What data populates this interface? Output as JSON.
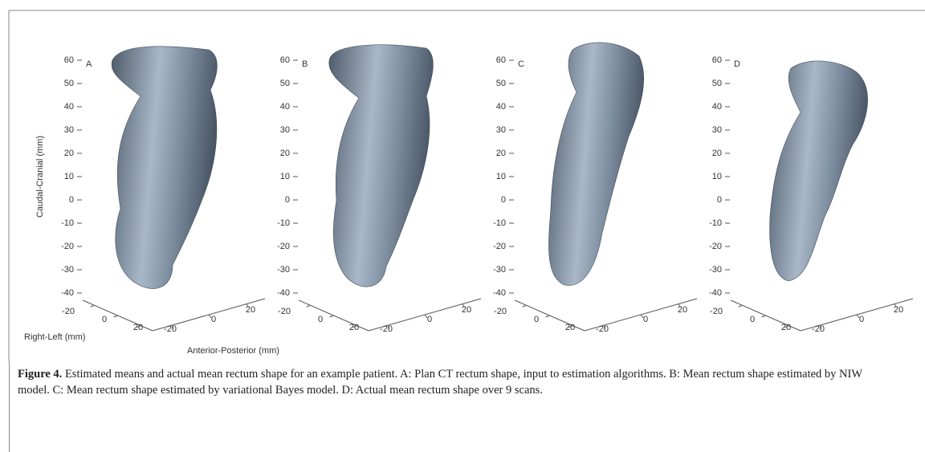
{
  "panels": [
    {
      "label": "A"
    },
    {
      "label": "B"
    },
    {
      "label": "C"
    },
    {
      "label": "D"
    }
  ],
  "z_ticks": [
    60,
    50,
    40,
    30,
    20,
    10,
    0,
    -10,
    -20,
    -30,
    -40
  ],
  "x_ticks": [
    -20,
    0,
    20
  ],
  "y_ticks": [
    -20,
    0,
    20
  ],
  "z_axis_label": "Caudal-Cranial (mm)",
  "x_axis_label": "Right-Left (mm)",
  "y_axis_label": "Anterior-Posterior (mm)",
  "caption": {
    "label": "Figure 4.",
    "text": "Estimated means and actual mean rectum shape for an example patient. A: Plan CT rectum shape, input to estimation algorithms. B: Mean rectum shape estimated by NIW model. C: Mean rectum shape estimated by variational Bayes model. D: Actual mean rectum shape over 9 scans."
  }
}
